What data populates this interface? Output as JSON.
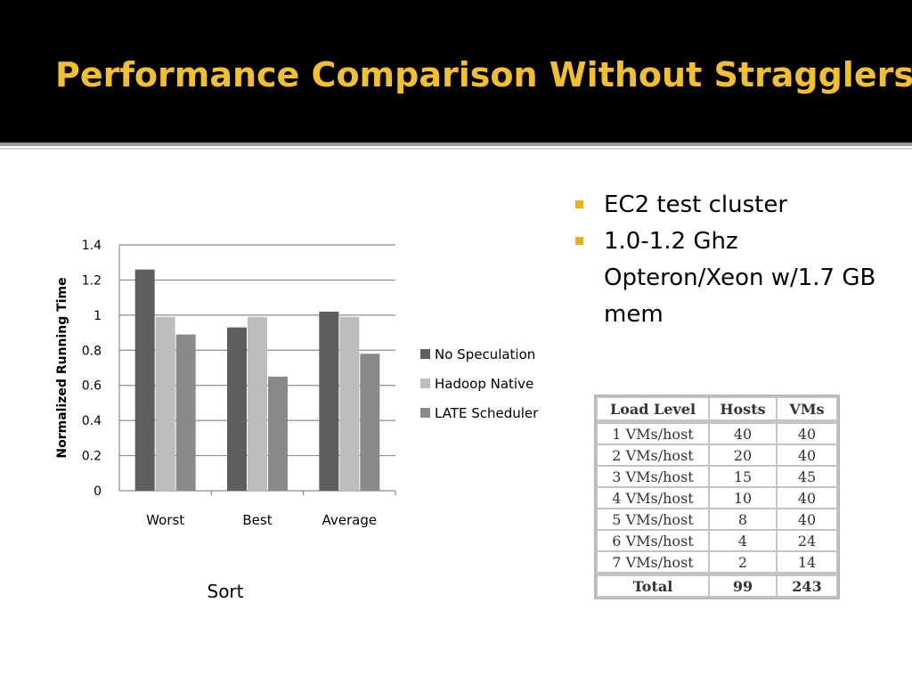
{
  "slide": {
    "title": "Performance Comparison Without Stragglers",
    "bullets": [
      "EC2 test cluster",
      "1.0-1.2 Ghz Opteron/Xeon w/1.7 GB mem"
    ],
    "bullet_color": "#e8b021",
    "title_color": "#f2c02e"
  },
  "chart_data": {
    "type": "bar",
    "title": "",
    "caption": "Sort",
    "xlabel": "",
    "ylabel": "Normalized Running Time",
    "ylim": [
      0,
      1.4
    ],
    "yticks": [
      "0",
      "0.2",
      "0.4",
      "0.6",
      "0.8",
      "1",
      "1.2",
      "1.4"
    ],
    "categories": [
      "Worst",
      "Best",
      "Average"
    ],
    "legend_placement": "right",
    "grid": true,
    "series": [
      {
        "name": "No Speculation",
        "color": "#5e5e5e",
        "values": [
          1.26,
          0.93,
          1.02
        ]
      },
      {
        "name": "Hadoop Native",
        "color": "#bdbdbd",
        "values": [
          0.99,
          0.99,
          0.99
        ]
      },
      {
        "name": "LATE Scheduler",
        "color": "#8a8a8a",
        "values": [
          0.89,
          0.65,
          0.78
        ]
      }
    ]
  },
  "table": {
    "headers": [
      "Load Level",
      "Hosts",
      "VMs"
    ],
    "rows": [
      [
        "1 VMs/host",
        "40",
        "40"
      ],
      [
        "2 VMs/host",
        "20",
        "40"
      ],
      [
        "3 VMs/host",
        "15",
        "45"
      ],
      [
        "4 VMs/host",
        "10",
        "40"
      ],
      [
        "5 VMs/host",
        "8",
        "40"
      ],
      [
        "6 VMs/host",
        "4",
        "24"
      ],
      [
        "7 VMs/host",
        "2",
        "14"
      ]
    ],
    "total": [
      "Total",
      "99",
      "243"
    ]
  }
}
